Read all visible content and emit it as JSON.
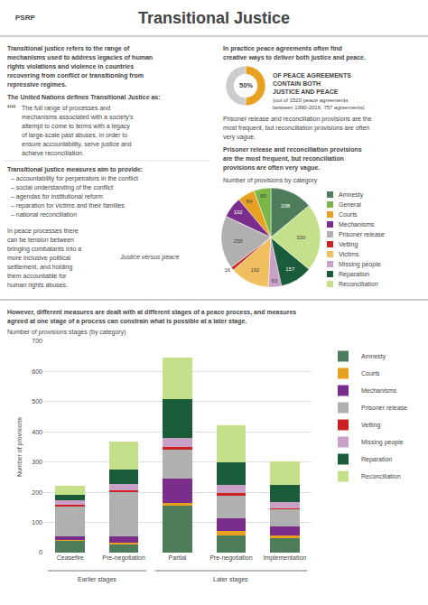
{
  "title": "Transitional Justice",
  "annotations": [
    {
      "text": "PSRP"
    },
    {
      "text": "Transitional justice refers to the range of"
    },
    {
      "text": "mechanisms used to address legacies of human"
    },
    {
      "text": "rights violations and violence in countries"
    },
    {
      "text": "recovering from conflict or transitioning from"
    },
    {
      "text": "repressive regimes."
    },
    {
      "text": "The United Nations defines Transitional Justice as:"
    },
    {
      "text": "““"
    },
    {
      "text": "The full range of processes and"
    },
    {
      "text": "mechanisms associated with a society’s"
    },
    {
      "text": "attempt to come to terms with a legacy"
    },
    {
      "text": "of large-scale past abuses, in order to"
    },
    {
      "text": "ensure accountability, serve justice and"
    },
    {
      "text": "achieve reconciliation."
    },
    {
      "text": "Transitional justice measures aim to provide:"
    },
    {
      "text": "– accountability for perpetrators in the conflict"
    },
    {
      "text": "– social understanding of the conflict"
    },
    {
      "text": "– agendas for institutional reform"
    },
    {
      "text": "– reparation for victims and their families"
    },
    {
      "text": "– national reconciliation"
    },
    {
      "text": "In peace processes there"
    },
    {
      "text": "can be tension between"
    },
    {
      "text": "bringing combatants into a"
    },
    {
      "text": "more inclusive political"
    },
    {
      "text": "settlement, and holding"
    },
    {
      "text": "them accountable for"
    },
    {
      "text": "human rights abuses."
    },
    {
      "text": "Justice versus peace"
    },
    {
      "text": "In practice peace agreements often find"
    },
    {
      "text": "creative ways to deliver both justice and peace."
    },
    {
      "text": "50%"
    },
    {
      "text": "OF PEACE AGREEMENTS"
    },
    {
      "text": "CONTAIN BOTH"
    },
    {
      "text": "JUSTICE AND PEACE"
    },
    {
      "text": "(out of 1520 peace agreements"
    },
    {
      "text": "between 1990-2016, 757 agreements)"
    },
    {
      "text": "Prisoner release and reconciliation provisions are the"
    },
    {
      "text": "most frequent, but reconciliation provisions are often"
    },
    {
      "text": "very vague."
    },
    {
      "text": "Prisoner release and reconciliation provisions"
    },
    {
      "text": "are the most frequent, but reconciliation"
    },
    {
      "text": "provisions are often very vague."
    },
    {
      "text": "However, different measures are dealt with at different stages of a peace process, and measures"
    },
    {
      "text": "agreed at one stage of a process can constrain what is possible at a later stage."
    }
  ],
  "chart_data": [
    {
      "type": "pie",
      "values": [
        50,
        50
      ],
      "colors": [
        "#e8a020",
        "#cccccc"
      ]
    },
    {
      "type": "pie",
      "title": "Number of provisions by category",
      "categories": [
        "Amnesty",
        "General",
        "Courts",
        "Mechanisms",
        "Prisoner release",
        "Vetting",
        "Victims",
        "Missing people",
        "Reparation",
        "Reconciliation"
      ],
      "values": [
        208,
        83,
        84,
        102,
        258,
        16,
        192,
        63,
        157,
        330
      ],
      "colors": [
        "#4e7d5b",
        "#7ab648",
        "#e8a020",
        "#7b2d8b",
        "#b0b0b0",
        "#cc2222",
        "#f0c060",
        "#c8a0c8",
        "#1a5c3a",
        "#c5e08a"
      ],
      "data_labels": true,
      "legend": "right"
    },
    {
      "type": "bar",
      "title": "Number of provisions stages (by category)",
      "ylabel": "Number of provisions",
      "categories": [
        "Ceasefire",
        "Pre-negotiation",
        "Partial",
        "Pre-negotiation",
        "Implementation"
      ],
      "series": [
        {
          "name": "Amnesty",
          "color": "#4e7d5b",
          "values": [
            38,
            28,
            155,
            58,
            48
          ]
        },
        {
          "name": "Courts",
          "color": "#e8a020",
          "values": [
            5,
            5,
            10,
            15,
            10
          ]
        },
        {
          "name": "Mechanisms",
          "color": "#7b2d8b",
          "values": [
            10,
            20,
            80,
            40,
            30
          ]
        },
        {
          "name": "Prisoner release",
          "color": "#b0b0b0",
          "values": [
            100,
            148,
            95,
            75,
            55
          ]
        },
        {
          "name": "Vetting",
          "color": "#cc2222",
          "values": [
            5,
            5,
            10,
            10,
            5
          ]
        },
        {
          "name": "Missing people",
          "color": "#c8a0c8",
          "values": [
            15,
            20,
            30,
            25,
            20
          ]
        },
        {
          "name": "Reparation",
          "color": "#1a5c3a",
          "values": [
            18,
            48,
            130,
            75,
            55
          ]
        },
        {
          "name": "Reconciliation",
          "color": "#c5e08a",
          "values": [
            30,
            93,
            135,
            125,
            80
          ]
        }
      ],
      "stacked": true,
      "grid": true,
      "legend": "right",
      "ylim": [
        0,
        700
      ],
      "yticks": [
        0,
        100,
        200,
        300,
        400,
        500,
        600,
        700
      ],
      "annotations": [
        {
          "text": "Earlier stages",
          "span": [
            0,
            1
          ]
        },
        {
          "text": "Later stages",
          "span": [
            2,
            4
          ]
        }
      ]
    }
  ]
}
